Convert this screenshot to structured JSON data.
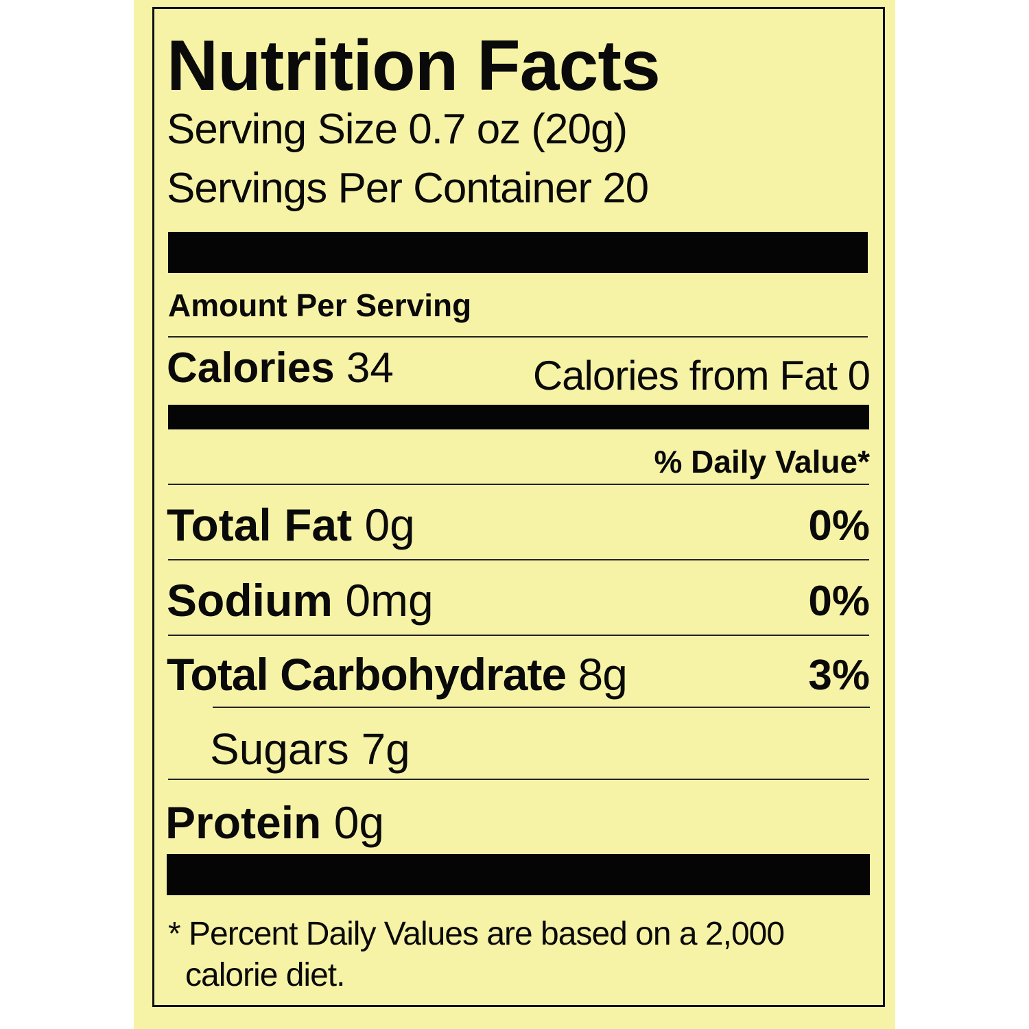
{
  "label": {
    "title": "Nutrition Facts",
    "serving_size": "Serving Size 0.7 oz (20g)",
    "servings_per_container": "Servings Per Container 20",
    "amount_per_serving": "Amount Per Serving",
    "calories_label": "Calories",
    "calories_value": "34",
    "calories_from_fat": "Calories from Fat 0",
    "daily_value_header": "% Daily Value*",
    "nutrients": [
      {
        "name": "Total Fat",
        "amount": "0g",
        "dv": "0%"
      },
      {
        "name": "Sodium",
        "amount": "0mg",
        "dv": "0%"
      },
      {
        "name": "Total Carbohydrate",
        "amount": "8g",
        "dv": "3%"
      },
      {
        "name": "Sugars",
        "amount": "7g",
        "dv": ""
      },
      {
        "name": "Protein",
        "amount": "0g",
        "dv": ""
      }
    ],
    "footnote_line1": "* Percent Daily Values are based on a 2,000",
    "footnote_line2": "calorie diet."
  },
  "colors": {
    "label_background": "#f6f3a6",
    "ink": "#0a0a0a"
  }
}
